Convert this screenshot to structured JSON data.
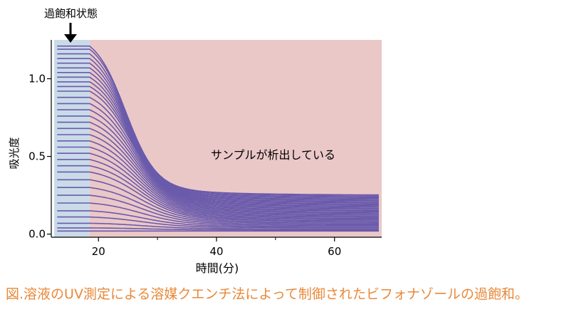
{
  "chart_data": {
    "type": "line",
    "xlabel": "時間(分)",
    "ylabel": "吸光度",
    "xlim": [
      12,
      68
    ],
    "ylim": [
      -0.02,
      1.25
    ],
    "x_ticks": [
      20,
      40,
      60
    ],
    "y_ticks": [
      0.0,
      0.5,
      1.0
    ],
    "x_tick_labels": [
      "20",
      "40",
      "60"
    ],
    "y_tick_labels": [
      "0.0",
      "0.5",
      "1.0"
    ],
    "grid": false,
    "series_color": "#6a5aab",
    "regions": [
      {
        "x_start": 12.5,
        "x_end": 18.5,
        "color": "#c9dbe8"
      },
      {
        "x_start": 18.5,
        "x_end": 68,
        "color": "#ebc8c8"
      }
    ],
    "curve_initial_absorbance": [
      1.21,
      1.19,
      1.16,
      1.13,
      1.1,
      1.07,
      1.04,
      1.01,
      0.98,
      0.95,
      0.92,
      0.88,
      0.84,
      0.8,
      0.76,
      0.72,
      0.68,
      0.64,
      0.6,
      0.56,
      0.52,
      0.48,
      0.44,
      0.4,
      0.35,
      0.3,
      0.25,
      0.2,
      0.15,
      0.11,
      0.07,
      0.04,
      0.02
    ],
    "annotations": [
      {
        "text": "過飽和状態",
        "x": 15.5,
        "y": 1.21,
        "arrow": true
      },
      {
        "text": "サンプルが析出している",
        "x": 28,
        "y": 0.52
      }
    ]
  },
  "caption": {
    "line1": "図.溶液のUV測定による溶媒クエンチ法によって制御されたビフォナゾールの過飽和。",
    "line2": ""
  }
}
